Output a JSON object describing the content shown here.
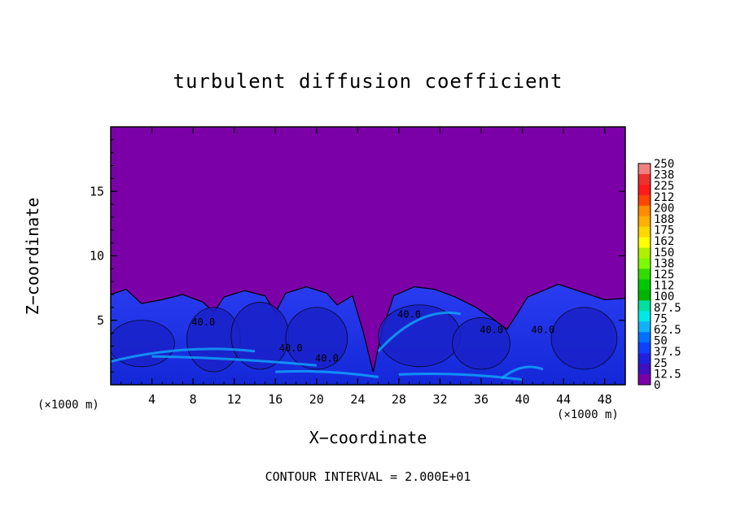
{
  "chart_data": {
    "type": "heatmap",
    "title": "turbulent diffusion coefficient",
    "xlabel": "X−coordinate",
    "ylabel": "Z−coordinate",
    "x_unit": "(×1000 m)",
    "y_unit": "(×1000 m)",
    "footer": "CONTOUR INTERVAL = 2.000E+01",
    "xlim": [
      0,
      50
    ],
    "ylim": [
      0,
      20
    ],
    "x_ticks": [
      4,
      8,
      12,
      16,
      20,
      24,
      28,
      32,
      36,
      40,
      44,
      48
    ],
    "y_ticks": [
      5,
      10,
      15
    ],
    "colorbar": {
      "labels": [
        "250",
        "238",
        "225",
        "212",
        "200",
        "188",
        "175",
        "162",
        "150",
        "138",
        "125",
        "112",
        "100",
        "87.5",
        "75",
        "62.5",
        "50",
        "37.5",
        "25",
        "12.5",
        "0"
      ],
      "colors": [
        "#f08080",
        "#ee3030",
        "#ff1a1a",
        "#ff4500",
        "#ff8c00",
        "#ffb000",
        "#ffd700",
        "#ffff00",
        "#b0f000",
        "#7cfc00",
        "#32dc00",
        "#00c800",
        "#00b400",
        "#00e0a0",
        "#00e8e8",
        "#10b0ff",
        "#0070ff",
        "#1040ff",
        "#2020e0",
        "#4010c0",
        "#7b00a8"
      ]
    },
    "contour_interval": 20,
    "contour_labels": [
      {
        "text": "40.0",
        "x": 9.0,
        "z": 4.6
      },
      {
        "text": "40.0",
        "x": 17.5,
        "z": 2.6
      },
      {
        "text": "40.0",
        "x": 21.0,
        "z": 1.8
      },
      {
        "text": "40.0",
        "x": 29.0,
        "z": 5.2
      },
      {
        "text": "40.0",
        "x": 37.0,
        "z": 4.0
      },
      {
        "text": "40.0",
        "x": 42.0,
        "z": 4.0
      }
    ],
    "background_value": 0,
    "turbulent_layer_top_approx": 7.5
  }
}
